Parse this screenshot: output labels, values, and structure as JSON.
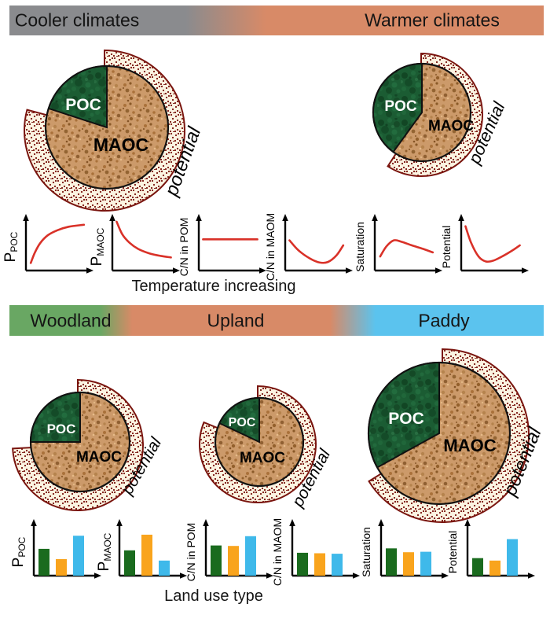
{
  "figure": {
    "top": {
      "bar": {
        "left": "Cooler climates",
        "right": "Warmer climates"
      },
      "xlabel": "Temperature increasing"
    },
    "bottom": {
      "bar": {
        "left": "Woodland",
        "middle": "Upland",
        "right": "Paddy"
      },
      "xlabel": "Land use type"
    }
  },
  "pies": [
    {
      "id": "cooler",
      "section": "top",
      "poc_label": "POC",
      "maoc_label": "MAOC",
      "potential_label": "potential",
      "poc_percent": 20,
      "relative_size": "large"
    },
    {
      "id": "warmer",
      "section": "top",
      "poc_label": "POC",
      "maoc_label": "MAOC",
      "potential_label": "potential",
      "poc_percent": 40,
      "relative_size": "medium"
    },
    {
      "id": "woodland",
      "section": "bottom",
      "poc_label": "POC",
      "maoc_label": "MAOC",
      "potential_label": "potential",
      "poc_percent": 25,
      "relative_size": "medium"
    },
    {
      "id": "upland",
      "section": "bottom",
      "poc_label": "POC",
      "maoc_label": "MAOC",
      "potential_label": "potential",
      "poc_percent": 18,
      "relative_size": "small"
    },
    {
      "id": "paddy",
      "section": "bottom",
      "poc_label": "POC",
      "maoc_label": "MAOC",
      "potential_label": "potential",
      "poc_percent": 33,
      "relative_size": "largest"
    }
  ],
  "chart_data": [
    {
      "id": "ppoc-temp",
      "type": "line",
      "panel": "top",
      "ylabel": "P",
      "ylabel_sub": "POC",
      "xlabel": "Temperature increasing",
      "trend": "increase then plateau",
      "points": [
        [
          0.03,
          0.15
        ],
        [
          0.1,
          0.35
        ],
        [
          0.2,
          0.55
        ],
        [
          0.33,
          0.7
        ],
        [
          0.5,
          0.8
        ],
        [
          0.7,
          0.87
        ],
        [
          0.97,
          0.91
        ]
      ]
    },
    {
      "id": "pmaoc-temp",
      "type": "line",
      "panel": "top",
      "ylabel": "P",
      "ylabel_sub": "MAOC",
      "xlabel": "Temperature increasing",
      "trend": "steep decrease then flatten",
      "points": [
        [
          0.02,
          0.97
        ],
        [
          0.12,
          0.72
        ],
        [
          0.25,
          0.55
        ],
        [
          0.4,
          0.43
        ],
        [
          0.6,
          0.34
        ],
        [
          0.8,
          0.29
        ],
        [
          0.98,
          0.26
        ]
      ]
    },
    {
      "id": "cnpom-temp",
      "type": "line",
      "panel": "top",
      "ylabel": "C/N in POM",
      "ylabel_sub": "",
      "xlabel": "Temperature increasing",
      "trend": "constant",
      "points": [
        [
          0.02,
          0.62
        ],
        [
          0.98,
          0.62
        ]
      ]
    },
    {
      "id": "cnmaom-temp",
      "type": "line",
      "panel": "top",
      "ylabel": "C/N in MAOM",
      "ylabel_sub": "",
      "xlabel": "Temperature increasing",
      "trend": "dip then rise (U shape)",
      "points": [
        [
          0.02,
          0.6
        ],
        [
          0.18,
          0.4
        ],
        [
          0.38,
          0.24
        ],
        [
          0.55,
          0.16
        ],
        [
          0.7,
          0.17
        ],
        [
          0.85,
          0.3
        ],
        [
          0.97,
          0.5
        ]
      ]
    },
    {
      "id": "saturation-temp",
      "type": "line",
      "panel": "top",
      "ylabel": "Saturation",
      "ylabel_sub": "",
      "xlabel": "Temperature increasing",
      "trend": "rise to hump then gentle decline",
      "points": [
        [
          0.04,
          0.28
        ],
        [
          0.15,
          0.48
        ],
        [
          0.28,
          0.6
        ],
        [
          0.42,
          0.57
        ],
        [
          0.6,
          0.5
        ],
        [
          0.8,
          0.43
        ],
        [
          0.97,
          0.36
        ]
      ]
    },
    {
      "id": "potential-temp",
      "type": "line",
      "panel": "top",
      "ylabel": "Potential",
      "ylabel_sub": "",
      "xlabel": "Temperature increasing",
      "trend": "sharp drop then gradual rise",
      "points": [
        [
          0.02,
          0.88
        ],
        [
          0.12,
          0.55
        ],
        [
          0.25,
          0.28
        ],
        [
          0.38,
          0.18
        ],
        [
          0.52,
          0.2
        ],
        [
          0.7,
          0.3
        ],
        [
          0.85,
          0.4
        ],
        [
          0.98,
          0.5
        ]
      ]
    },
    {
      "id": "ppoc-landuse",
      "type": "bar",
      "panel": "bottom",
      "ylabel": "P",
      "ylabel_sub": "POC",
      "xlabel": "Land use type",
      "categories": [
        "Woodland",
        "Upland",
        "Paddy"
      ],
      "values": [
        0.55,
        0.34,
        0.82
      ]
    },
    {
      "id": "pmaoc-landuse",
      "type": "bar",
      "panel": "bottom",
      "ylabel": "P",
      "ylabel_sub": "MAOC",
      "xlabel": "Land use type",
      "categories": [
        "Woodland",
        "Upland",
        "Paddy"
      ],
      "values": [
        0.52,
        0.84,
        0.31
      ]
    },
    {
      "id": "cnpom-landuse",
      "type": "bar",
      "panel": "bottom",
      "ylabel": "C/N in POM",
      "ylabel_sub": "",
      "xlabel": "Land use type",
      "categories": [
        "Woodland",
        "Upland",
        "Paddy"
      ],
      "values": [
        0.62,
        0.61,
        0.81
      ]
    },
    {
      "id": "cnmaom-landuse",
      "type": "bar",
      "panel": "bottom",
      "ylabel": "C/N in MAOM",
      "ylabel_sub": "",
      "xlabel": "Land use type",
      "categories": [
        "Woodland",
        "Upland",
        "Paddy"
      ],
      "values": [
        0.47,
        0.46,
        0.45
      ]
    },
    {
      "id": "saturation-landuse",
      "type": "bar",
      "panel": "bottom",
      "ylabel": "Saturation",
      "ylabel_sub": "",
      "xlabel": "Land use type",
      "categories": [
        "Woodland",
        "Upland",
        "Paddy"
      ],
      "values": [
        0.56,
        0.48,
        0.49
      ]
    },
    {
      "id": "potential-landuse",
      "type": "bar",
      "panel": "bottom",
      "ylabel": "Potential",
      "ylabel_sub": "",
      "xlabel": "Land use type",
      "categories": [
        "Woodland",
        "Upland",
        "Paddy"
      ],
      "values": [
        0.36,
        0.31,
        0.75
      ]
    }
  ],
  "colors": {
    "cool_gray": "#8a8b8e",
    "warm_salmon": "#d88a67",
    "woodland_green": "#69a763",
    "paddy_blue": "#5bc3ee",
    "curve_red": "#d93128",
    "bar_green": "#1a6b1e",
    "bar_orange": "#f9a41d",
    "bar_blue": "#3fb9ea",
    "pie_tan": "#cc9a6a",
    "pie_green": "#1b5c33",
    "ring_cream": "#fbf4e2",
    "ring_dot": "#7a150f",
    "ring_border": "#7a150f",
    "pie_outline": "#111111",
    "axis_black": "#000000",
    "poc_text": "#ffffff",
    "maoc_text": "#000000"
  }
}
